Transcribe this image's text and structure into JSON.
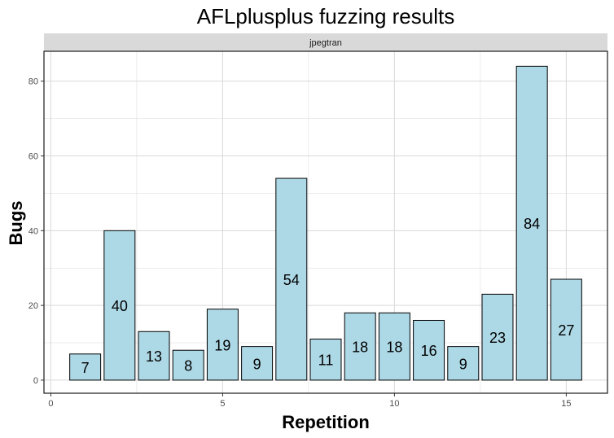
{
  "chart_data": {
    "type": "bar",
    "title": "AFLplusplus fuzzing results",
    "facet": "jpegtran",
    "xlabel": "Repetition",
    "ylabel": "Bugs",
    "x": [
      1,
      2,
      3,
      4,
      5,
      6,
      7,
      8,
      9,
      10,
      11,
      12,
      13,
      14,
      15
    ],
    "values": [
      7,
      40,
      13,
      8,
      19,
      9,
      54,
      11,
      18,
      18,
      16,
      9,
      23,
      84,
      27
    ],
    "xlim": [
      -0.2,
      16.2
    ],
    "ylim": [
      -3.5,
      88
    ],
    "xticks": [
      0,
      5,
      10,
      15
    ],
    "yticks": [
      0,
      20,
      40,
      60,
      80
    ],
    "grid": true,
    "bar_fill": "#add8e6",
    "bar_stroke": "#000000",
    "strip_fill": "#d9d9d9",
    "grid_color": "#d9d9d9"
  }
}
